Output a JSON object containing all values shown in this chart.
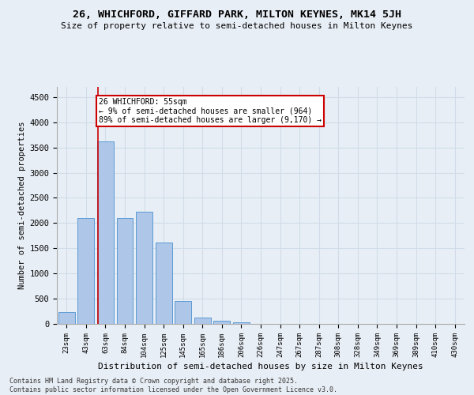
{
  "title_line1": "26, WHICHFORD, GIFFARD PARK, MILTON KEYNES, MK14 5JH",
  "title_line2": "Size of property relative to semi-detached houses in Milton Keynes",
  "xlabel": "Distribution of semi-detached houses by size in Milton Keynes",
  "ylabel": "Number of semi-detached properties",
  "footnote": "Contains HM Land Registry data © Crown copyright and database right 2025.\nContains public sector information licensed under the Open Government Licence v3.0.",
  "categories": [
    "23sqm",
    "43sqm",
    "63sqm",
    "84sqm",
    "104sqm",
    "125sqm",
    "145sqm",
    "165sqm",
    "186sqm",
    "206sqm",
    "226sqm",
    "247sqm",
    "267sqm",
    "287sqm",
    "308sqm",
    "328sqm",
    "349sqm",
    "369sqm",
    "389sqm",
    "410sqm",
    "430sqm"
  ],
  "values": [
    230,
    2100,
    3620,
    2100,
    2230,
    1620,
    460,
    120,
    60,
    35,
    0,
    0,
    0,
    0,
    0,
    0,
    0,
    0,
    0,
    0,
    0
  ],
  "bar_color": "#aec6e8",
  "bar_edge_color": "#5b9bd5",
  "grid_color": "#d0dce8",
  "background_color": "#e8eef5",
  "vline_color": "#cc0000",
  "vline_pos": 1.6,
  "annotation_text": "26 WHICHFORD: 55sqm\n← 9% of semi-detached houses are smaller (964)\n89% of semi-detached houses are larger (9,170) →",
  "annotation_box_color": "#ffffff",
  "annotation_box_edge": "#cc0000",
  "ylim": [
    0,
    4700
  ],
  "yticks": [
    0,
    500,
    1000,
    1500,
    2000,
    2500,
    3000,
    3500,
    4000,
    4500
  ]
}
